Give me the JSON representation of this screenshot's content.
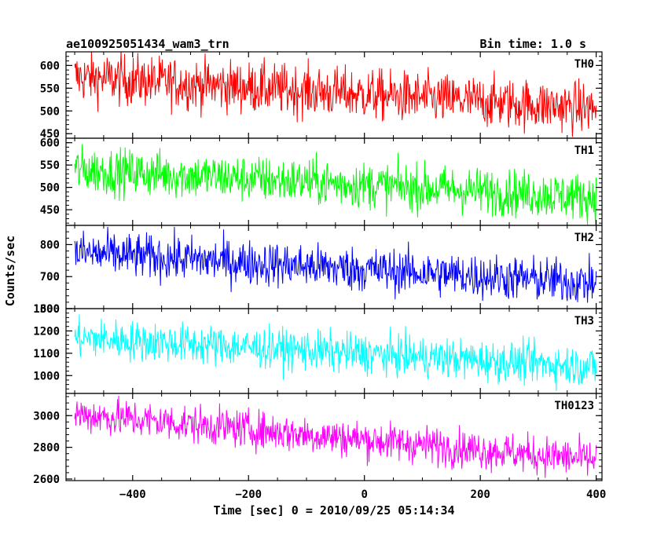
{
  "header": {
    "title": "ae100925051434_wam3_trn",
    "bin_time": "Bin time: 1.0 s"
  },
  "chart_data": {
    "type": "line",
    "title": "ae100925051434_wam3_trn",
    "xlabel": "Time [sec] 0 = 2010/09/25 05:14:34",
    "ylabel": "Counts/sec",
    "xlim": [
      -515,
      410
    ],
    "x_ticks": [
      -400,
      -200,
      0,
      200,
      400
    ],
    "x_tick_labels": [
      "−400",
      "−200",
      "0",
      "200",
      "400"
    ],
    "panels": [
      {
        "name": "TH0",
        "color": "#ff0000",
        "ylim": [
          440,
          630
        ],
        "y_ticks": [
          450,
          500,
          550,
          600
        ],
        "y_tick_labels": [
          "450",
          "500",
          "550",
          "600"
        ],
        "x_start": -500,
        "x_end": 400,
        "start_mean": 575,
        "end_mean": 505,
        "noise": 28
      },
      {
        "name": "TH1",
        "color": "#00ff00",
        "ylim": [
          415,
          610
        ],
        "y_ticks": [
          450,
          500,
          550,
          600
        ],
        "y_tick_labels": [
          "450",
          "500",
          "550",
          "600"
        ],
        "x_start": -500,
        "x_end": 400,
        "start_mean": 540,
        "end_mean": 478,
        "noise": 26
      },
      {
        "name": "TH2",
        "color": "#0000ff",
        "ylim": [
          600,
          860
        ],
        "y_ticks": [
          600,
          700,
          800
        ],
        "y_tick_labels": [
          "600",
          "700",
          "800"
        ],
        "x_start": -500,
        "x_end": 400,
        "start_mean": 775,
        "end_mean": 680,
        "noise": 35
      },
      {
        "name": "TH3",
        "color": "#00ffff",
        "ylim": [
          920,
          1300
        ],
        "y_ticks": [
          1000,
          1100,
          1200,
          1300
        ],
        "y_tick_labels": [
          "1000",
          "1100",
          "1200",
          "1300"
        ],
        "x_start": -500,
        "x_end": 400,
        "start_mean": 1170,
        "end_mean": 1040,
        "noise": 45
      },
      {
        "name": "TH0123",
        "color": "#ff00ff",
        "ylim": [
          2590,
          3140
        ],
        "y_ticks": [
          2600,
          2800,
          3000
        ],
        "y_tick_labels": [
          "2600",
          "2800",
          "3000"
        ],
        "x_start": -500,
        "x_end": 400,
        "start_mean": 3010,
        "end_mean": 2720,
        "noise": 60
      }
    ]
  }
}
